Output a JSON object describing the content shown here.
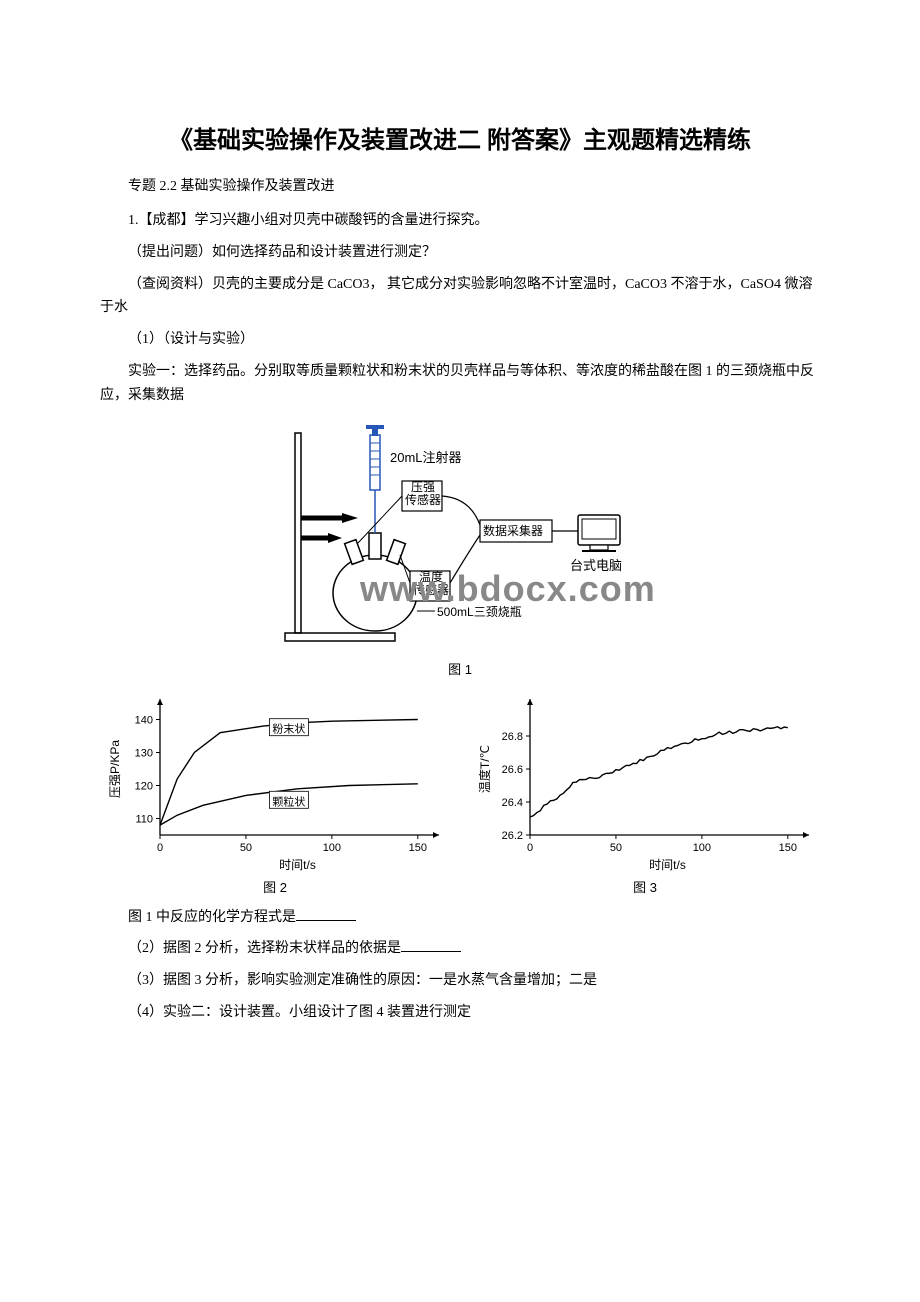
{
  "title": "《基础实验操作及装置改进二 附答案》主观题精选精练",
  "subtitle": "专题 2.2  基础实验操作及装置改进",
  "p1": "1.【成都】学习兴趣小组对贝壳中碳酸钙的含量进行探究。",
  "p2": "（提出问题）如何选择药品和设计装置进行测定？",
  "p3": "（查阅资料）贝壳的主要成分是 CaCO3，  其它成分对实验影响忽略不计室温时，CaCO3 不溶于水，CaSO4 微溶于水",
  "p4": "（1）（设计与实验）",
  "p5": "实验一：选择药品。分别取等质量颗粒状和粉末状的贝壳样品与等体积、等浓度的稀盐酸在图 1 的三颈烧瓶中反应，采集数据",
  "fig1_caption": "图 1",
  "fig1": {
    "syringe_label": "20mL注射器",
    "pressure_sensor": "压强\n传感器",
    "temp_sensor": "温度\n传感器",
    "flask_label": "500mL三颈烧瓶",
    "daq_label": "数据采集器",
    "pc_label": "台式电脑",
    "watermark": "www.bdocx.com"
  },
  "chart2": {
    "type": "line",
    "y_label": "压强P/KPa",
    "x_label": "时间t/s",
    "caption": "图 2",
    "xlim": [
      0,
      160
    ],
    "ylim": [
      105,
      145
    ],
    "xticks": [
      0,
      50,
      100,
      150
    ],
    "yticks": [
      110,
      120,
      130,
      140
    ],
    "series": [
      {
        "name": "粉末状",
        "color": "#000000",
        "points": [
          [
            0,
            108
          ],
          [
            5,
            115
          ],
          [
            10,
            122
          ],
          [
            20,
            130
          ],
          [
            35,
            136
          ],
          [
            60,
            138
          ],
          [
            80,
            139
          ],
          [
            100,
            139.5
          ],
          [
            150,
            140
          ]
        ],
        "label_pos": [
          75,
          136
        ]
      },
      {
        "name": "颗粒状",
        "color": "#000000",
        "points": [
          [
            0,
            108
          ],
          [
            10,
            111
          ],
          [
            25,
            114
          ],
          [
            50,
            117
          ],
          [
            80,
            119
          ],
          [
            110,
            120
          ],
          [
            150,
            120.5
          ]
        ],
        "label_pos": [
          75,
          114
        ]
      }
    ],
    "axis_color": "#000000",
    "bg": "#ffffff",
    "fontsize": 11
  },
  "chart3": {
    "type": "line",
    "y_label": "温度T/℃",
    "x_label": "时间t/s",
    "caption": "图 3",
    "xlim": [
      0,
      160
    ],
    "ylim": [
      26.2,
      27.0
    ],
    "xticks": [
      0,
      50,
      100,
      150
    ],
    "yticks": [
      26.2,
      26.4,
      26.6,
      26.8
    ],
    "series": [
      {
        "name": "温度",
        "color": "#000000",
        "noisy": true,
        "base": [
          [
            0,
            26.3
          ],
          [
            10,
            26.4
          ],
          [
            25,
            26.5
          ],
          [
            50,
            26.6
          ],
          [
            80,
            26.72
          ],
          [
            110,
            26.8
          ],
          [
            150,
            26.85
          ]
        ]
      }
    ],
    "axis_color": "#000000",
    "bg": "#ffffff",
    "fontsize": 11
  },
  "p6_a": "图 1 中反应的化学方程式是",
  "p7_a": "（2）据图 2 分析，选择粉末状样品的依据是",
  "p8": "（3）据图 3 分析，影响实验测定准确性的原因：一是水蒸气含量增加；二是",
  "p9": "（4）实验二：设计装置。小组设计了图 4 装置进行测定"
}
